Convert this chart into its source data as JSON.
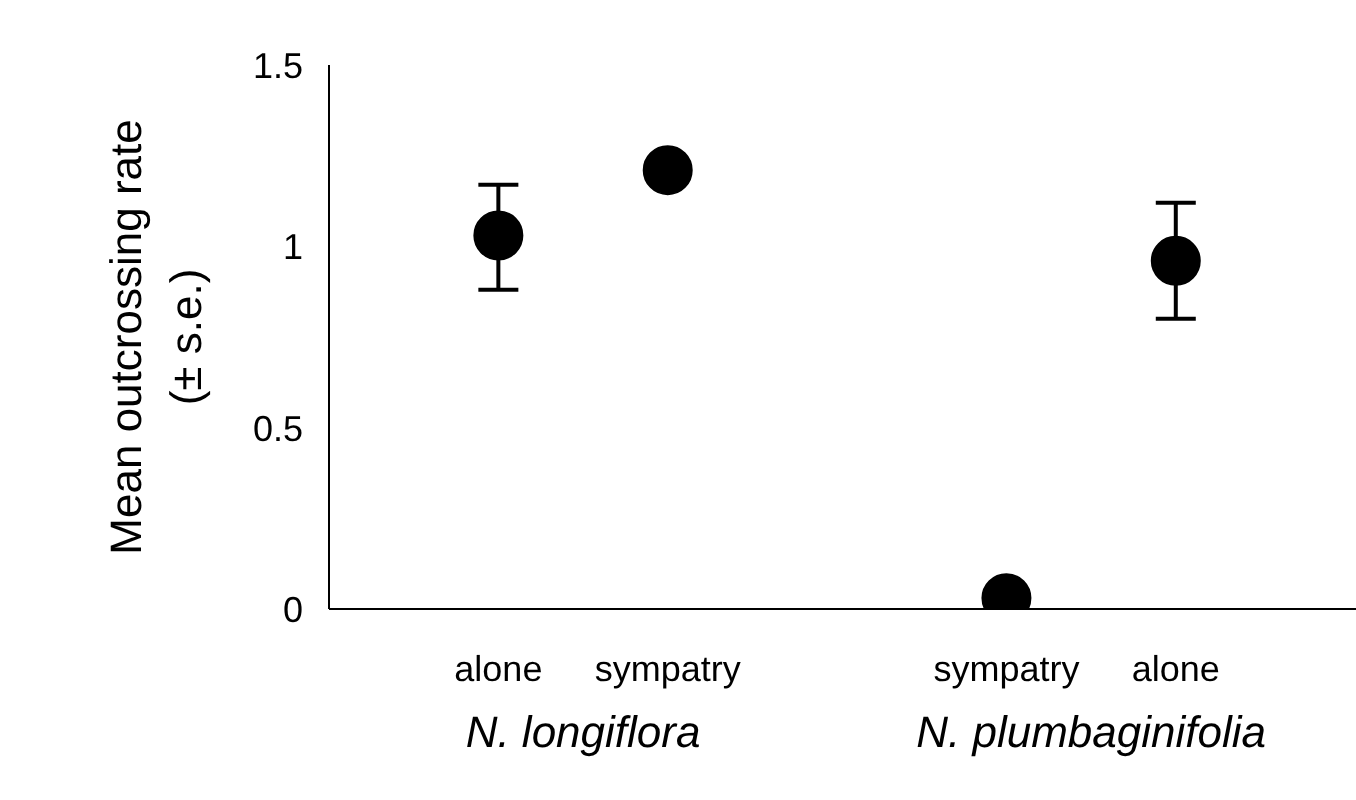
{
  "chart_data": {
    "type": "scatter",
    "ylabel": "Mean outcrossing rate\n(± s.e.)",
    "categories": [
      "alone",
      "sympatry",
      null,
      "sympatry",
      "alone"
    ],
    "values": [
      1.03,
      1.21,
      null,
      0.03,
      0.96
    ],
    "errors": [
      [
        0.88,
        1.17
      ],
      null,
      null,
      null,
      [
        0.8,
        1.12
      ]
    ],
    "color": "#000000",
    "marker": "circle",
    "grid": false,
    "ylim": [
      0,
      1.5
    ],
    "yticks": [
      0,
      0.5,
      1,
      1.5
    ],
    "annotations": [
      "N. longiflora",
      "N. plumbaginifolia"
    ]
  }
}
